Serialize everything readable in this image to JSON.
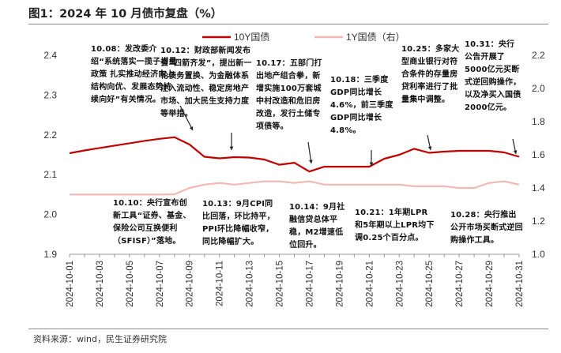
{
  "figure": {
    "title": "图1：2024 年 10 月债市复盘（%）",
    "source": "资料来源：wind，民生证券研究院"
  },
  "chart_data": {
    "type": "line",
    "x": [
      "2024-10-01",
      "2024-10-02",
      "2024-10-03",
      "2024-10-04",
      "2024-10-05",
      "2024-10-06",
      "2024-10-07",
      "2024-10-08",
      "2024-10-09",
      "2024-10-10",
      "2024-10-11",
      "2024-10-12",
      "2024-10-13",
      "2024-10-14",
      "2024-10-15",
      "2024-10-16",
      "2024-10-17",
      "2024-10-18",
      "2024-10-19",
      "2024-10-20",
      "2024-10-21",
      "2024-10-22",
      "2024-10-23",
      "2024-10-24",
      "2024-10-25",
      "2024-10-26",
      "2024-10-27",
      "2024-10-28",
      "2024-10-29",
      "2024-10-30",
      "2024-10-31"
    ],
    "x_tick_labels": [
      "2024-10-01",
      "2024-10-03",
      "2024-10-05",
      "2024-10-07",
      "2024-10-09",
      "2024-10-11",
      "2024-10-13",
      "2024-10-15",
      "2024-10-17",
      "2024-10-19",
      "2024-10-21",
      "2024-10-23",
      "2024-10-25",
      "2024-10-27",
      "2024-10-29",
      "2024-10-31"
    ],
    "series": [
      {
        "name": "10Y国债",
        "axis": "left",
        "color": "#c00000",
        "values": [
          2.154,
          2.161,
          2.167,
          2.173,
          2.179,
          2.185,
          2.19,
          2.194,
          2.176,
          2.145,
          2.141,
          2.144,
          2.143,
          2.138,
          2.125,
          2.13,
          2.108,
          2.12,
          2.12,
          2.12,
          2.12,
          2.14,
          2.15,
          2.165,
          2.155,
          2.158,
          2.16,
          2.16,
          2.16,
          2.156,
          2.145
        ]
      },
      {
        "name": "1Y国债（右）",
        "axis": "right",
        "color": "#f2b8b4",
        "values": [
          1.36,
          1.36,
          1.36,
          1.36,
          1.36,
          1.36,
          1.36,
          1.362,
          1.4,
          1.42,
          1.43,
          1.42,
          1.43,
          1.44,
          1.44,
          1.43,
          1.44,
          1.42,
          1.42,
          1.42,
          1.42,
          1.42,
          1.42,
          1.41,
          1.41,
          1.41,
          1.4,
          1.4,
          1.43,
          1.44,
          1.42
        ]
      }
    ],
    "ylim_left": [
      1.9,
      2.4
    ],
    "yticks_left": [
      "1.9",
      "2.0",
      "2.1",
      "2.2",
      "2.3",
      "2.4"
    ],
    "ylim_right": [
      1.0,
      2.2
    ],
    "yticks_right": [
      "1.0",
      "1.2",
      "1.4",
      "1.6",
      "1.8",
      "2.0",
      "2.2"
    ],
    "legend_position": "top-center",
    "grid": false,
    "annotations": [
      {
        "id": "a1008",
        "text": "10.08：发改委介绍“系统落实一揽子增量政策 扎实推动经济向上结构向优、发展态势持续向好”有关情况。"
      },
      {
        "id": "a1012",
        "text": "10.12：财政部新闻发布会“四箭齐发”，提出新一轮债务置换、为金融体系注入流动性、稳定房地产市场、加大民生支持力度等举措。"
      },
      {
        "id": "a1017",
        "text": "10.17：五部门打出地产组合拳，新增实施100万套城中村改造和危旧房改造，发行土储专项债等。"
      },
      {
        "id": "a1018",
        "text": "10.18：三季度GDP同比增长4.6%，前三季度GDP同比增长4.8%。"
      },
      {
        "id": "a1025",
        "text": "10.25：多家大型商业银行对符合条件的存量房贷利率进行了批量集中调整。"
      },
      {
        "id": "a1031",
        "text": "10.31：央行公告开展了5000亿元买断式逆回购操作，以及净买入国债2000亿元。"
      },
      {
        "id": "a1010",
        "text": "10.10：央行宣布创新工具“证券、基金、保险公司互换便利（SFISF）”落地。"
      },
      {
        "id": "a1013",
        "text": "10.13：9月CPI同比回落，环比持平，PPI环比降幅收窄，同比降幅扩大。"
      },
      {
        "id": "a1014",
        "text": "10.14：9月社融信贷总体平稳，M2增速低位回升。"
      },
      {
        "id": "a1021",
        "text": "10.21：1年期LPR和5年期以上LPR均下调0.25个百分点。"
      },
      {
        "id": "a1028",
        "text": "10.28：央行推出公开市场买断式逆回购操作工具。"
      }
    ]
  }
}
